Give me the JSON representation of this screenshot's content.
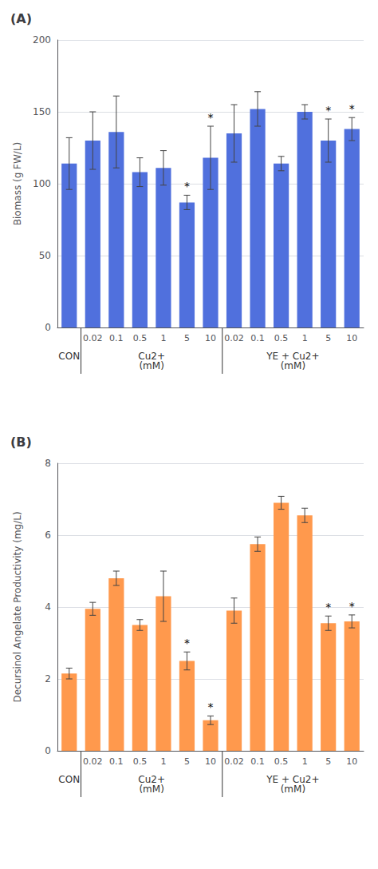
{
  "chart_data": [
    {
      "type": "bar",
      "title": "(A)",
      "ylabel": "Biomass (g FW/L)",
      "categories": [
        null,
        "0.02",
        "0.1",
        "0.5",
        "1",
        "5",
        "10",
        "0.02",
        "0.1",
        "0.5",
        "1",
        "5",
        "10"
      ],
      "values": [
        114,
        130,
        136,
        108,
        111,
        87,
        118,
        135,
        152,
        114,
        150,
        130,
        138
      ],
      "errors": [
        18,
        20,
        25,
        10,
        12,
        5,
        22,
        20,
        12,
        5,
        5,
        15,
        8
      ],
      "annotations": [
        {
          "text": "*",
          "index": 5
        },
        {
          "text": "*",
          "index": 6
        },
        {
          "text": "*",
          "index": 11
        },
        {
          "text": "*",
          "index": 12
        }
      ],
      "groups": [
        {
          "label": "CON",
          "start": 0,
          "end": 0
        },
        {
          "label": "Cu2+\n(mM)",
          "start": 1,
          "end": 6
        },
        {
          "label": "YE + Cu2+\n(mM)",
          "start": 7,
          "end": 12
        }
      ],
      "ylim": [
        0,
        200
      ],
      "yticks": [
        0,
        50,
        100,
        150,
        200
      ],
      "grid": true
    },
    {
      "type": "bar",
      "title": "(B)",
      "ylabel": "Decursinol Angelate Productivity (mg/L)",
      "categories": [
        null,
        "0.02",
        "0.1",
        "0.5",
        "1",
        "5",
        "10",
        "0.02",
        "0.1",
        "0.5",
        "1",
        "5",
        "10"
      ],
      "values": [
        2.15,
        3.95,
        4.8,
        3.5,
        4.3,
        2.5,
        0.85,
        3.9,
        5.75,
        6.9,
        6.55,
        3.55,
        3.6
      ],
      "errors": [
        0.15,
        0.18,
        0.2,
        0.15,
        0.7,
        0.25,
        0.12,
        0.35,
        0.2,
        0.18,
        0.2,
        0.2,
        0.18
      ],
      "annotations": [
        {
          "text": "*",
          "index": 5
        },
        {
          "text": "*",
          "index": 6
        },
        {
          "text": "*",
          "index": 11
        },
        {
          "text": "*",
          "index": 12
        }
      ],
      "groups": [
        {
          "label": "CON",
          "start": 0,
          "end": 0
        },
        {
          "label": "Cu2+\n(mM)",
          "start": 1,
          "end": 6
        },
        {
          "label": "YE + Cu2+\n(mM)",
          "start": 7,
          "end": 12
        }
      ],
      "ylim": [
        0,
        8
      ],
      "yticks": [
        0,
        2,
        4,
        6,
        8
      ],
      "grid": true
    }
  ]
}
